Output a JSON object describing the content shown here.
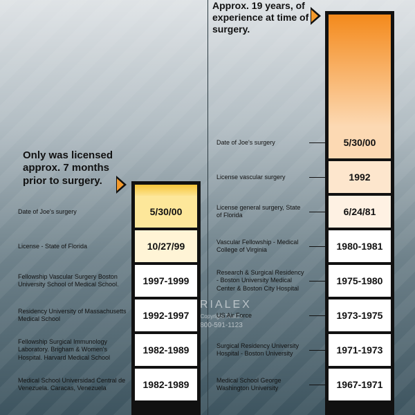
{
  "left": {
    "callout": "Only was licensed approx. 7 months prior to surgery.",
    "rows": [
      {
        "label": "Date of Joe's surgery",
        "value": "5/30/00",
        "color": "#fde79a"
      },
      {
        "label": "License - State of Florida",
        "value": "10/27/99",
        "color": "#fff4d6"
      },
      {
        "label": "Fellowship Vascular Surgery Boston University School of Medical School.",
        "value": "1997-1999",
        "color": "#ffffff"
      },
      {
        "label": "Residency University of Massachusetts Medical School",
        "value": "1992-1997",
        "color": "#ffffff"
      },
      {
        "label": "Fellowship Surgical Immunology Laboratory. Brigham & Women's Hospital. Harvard Medical School",
        "value": "1982-1989",
        "color": "#ffffff"
      },
      {
        "label": "Medical School Universidad Central de Venezuela. Caracas, Venezuela",
        "value": "1982-1989",
        "color": "#ffffff"
      }
    ]
  },
  "right": {
    "callout": "Approx. 19 years, of experience at time of surgery.",
    "rows": [
      {
        "label": "Date of Joe's surgery",
        "value": "5/30/00",
        "color": "#fcd9b3"
      },
      {
        "label": "License vascular surgery",
        "value": "1992",
        "color": "#fde6cd"
      },
      {
        "label": "License general surgery, State of Florida",
        "value": "6/24/81",
        "color": "#fef1e3"
      },
      {
        "label": "Vascular Fellowship - Medical College of Virginia",
        "value": "1980-1981",
        "color": "#ffffff"
      },
      {
        "label": "Research & Surgical Residency - Boston University Medical Center & Boston City Hospital",
        "value": "1975-1980",
        "color": "#ffffff"
      },
      {
        "label": "US Air Force",
        "value": "1973-1975",
        "color": "#ffffff"
      },
      {
        "label": "Surgical Residency University Hospital - Boston University",
        "value": "1971-1973",
        "color": "#ffffff"
      },
      {
        "label": "Medical School George Washington University",
        "value": "1967-1971",
        "color": "#ffffff"
      }
    ]
  },
  "watermark": {
    "brand": "TRIALEX",
    "line1": "Copyright TrialEx",
    "line2": "800-591-1123"
  },
  "colors": {
    "accent_orange": "#f39a2c",
    "frame": "#111111"
  }
}
